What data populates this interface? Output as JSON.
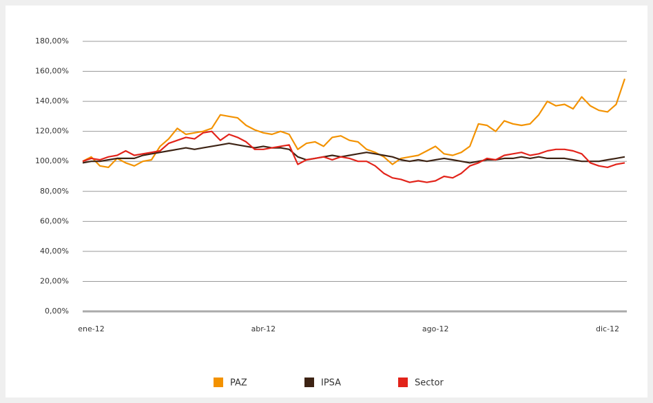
{
  "chart_data": {
    "type": "line",
    "categories": [
      null,
      "ene-12",
      null,
      null,
      null,
      null,
      null,
      null,
      null,
      null,
      null,
      null,
      null,
      null,
      null,
      null,
      null,
      null,
      null,
      null,
      null,
      "abr-12",
      null,
      null,
      null,
      null,
      null,
      null,
      null,
      null,
      null,
      null,
      null,
      null,
      null,
      null,
      null,
      null,
      null,
      null,
      null,
      "ago-12",
      null,
      null,
      null,
      null,
      null,
      null,
      null,
      null,
      null,
      null,
      null,
      null,
      null,
      null,
      null,
      null,
      null,
      null,
      null,
      "dic-12",
      null,
      null
    ],
    "series": [
      {
        "name": "PAZ",
        "color": "#f39200",
        "values": [
          100,
          103,
          97,
          96,
          102,
          99,
          97,
          100,
          101,
          110,
          115,
          122,
          118,
          119,
          120,
          122,
          131,
          130,
          129,
          124,
          121,
          119,
          118,
          120,
          118,
          108,
          112,
          113,
          110,
          116,
          117,
          114,
          113,
          108,
          106,
          103,
          98,
          102,
          103,
          104,
          107,
          110,
          105,
          104,
          106,
          110,
          125,
          124,
          120,
          127,
          125,
          124,
          125,
          131,
          140,
          137,
          138,
          135,
          143,
          137,
          134,
          133,
          138,
          155
        ]
      },
      {
        "name": "IPSA",
        "color": "#3d2314",
        "values": [
          99,
          100,
          100,
          101,
          102,
          102,
          102,
          104,
          105,
          106,
          107,
          108,
          109,
          108,
          109,
          110,
          111,
          112,
          111,
          110,
          109,
          110,
          109,
          109,
          108,
          103,
          101,
          102,
          103,
          104,
          103,
          104,
          105,
          106,
          105,
          104,
          103,
          101,
          100,
          101,
          100,
          101,
          102,
          101,
          100,
          99,
          100,
          101,
          101,
          102,
          102,
          103,
          102,
          103,
          102,
          102,
          102,
          101,
          100,
          100,
          100,
          101,
          102,
          103
        ]
      },
      {
        "name": "Sector",
        "color": "#e2231a",
        "values": [
          100,
          102,
          101,
          103,
          104,
          107,
          104,
          105,
          106,
          107,
          112,
          114,
          116,
          115,
          119,
          120,
          114,
          118,
          116,
          113,
          108,
          108,
          109,
          110,
          111,
          98,
          101,
          102,
          103,
          101,
          103,
          102,
          100,
          100,
          97,
          92,
          89,
          88,
          86,
          87,
          86,
          87,
          90,
          89,
          92,
          97,
          99,
          102,
          101,
          104,
          105,
          106,
          104,
          105,
          107,
          108,
          108,
          107,
          105,
          99,
          97,
          96,
          98,
          99
        ]
      }
    ],
    "ylim": [
      0,
      180
    ],
    "yticks": [
      {
        "value": 0,
        "label": "0,00%"
      },
      {
        "value": 20,
        "label": "20,00%"
      },
      {
        "value": 40,
        "label": "40,00%"
      },
      {
        "value": 60,
        "label": "60,00%"
      },
      {
        "value": 80,
        "label": "80,00%"
      },
      {
        "value": 100,
        "label": "100,00%"
      },
      {
        "value": 120,
        "label": "120,00%"
      },
      {
        "value": 140,
        "label": "140,00%"
      },
      {
        "value": 160,
        "label": "160,00%"
      },
      {
        "value": 180,
        "label": "180,00%"
      }
    ],
    "grid": true,
    "legend": "bottom"
  }
}
